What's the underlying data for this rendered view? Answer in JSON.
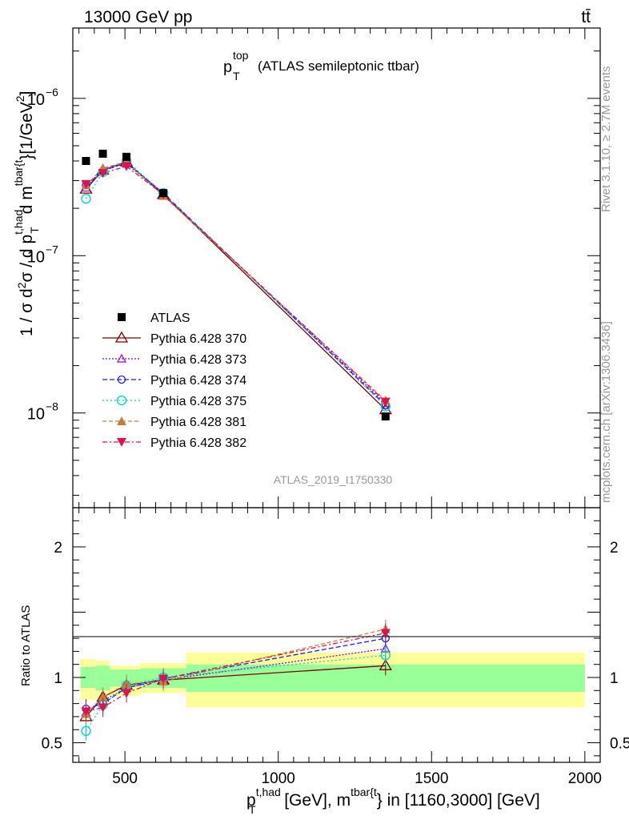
{
  "header": {
    "left": "13000 GeV pp",
    "right": "tt̄"
  },
  "title": {
    "main": "p",
    "sup": "top",
    "sub": "T",
    "rest": "(ATLAS semileptonic ttbar)"
  },
  "watermark": "ATLAS_2019_I1750330",
  "side_top": "Rivet 3.1.10, ≥ 2.7M events",
  "side_bottom": "mcplots.cern.ch [arXiv:1306.3436]",
  "ratio_ylabel": "Ratio to ATLAS",
  "ylabel_parts": {
    "a": "1 / σ d",
    "b": "2",
    "c": "σ / d p",
    "d": "t,had",
    "e": "T",
    "f": " d m",
    "g": "tbar{t",
    "h": "}[1/GeV",
    "i": "2",
    "j": "]"
  },
  "xlabel_parts": {
    "a": "p",
    "b": "t,had",
    "c": "T",
    "d": " [GeV], m",
    "e": "tbar{t",
    "f": "} in [1160,3000] [GeV]"
  },
  "colors": {
    "ATLAS": "#000000",
    "s370": "#800000",
    "s373": "#9400d3",
    "s374": "#1e1ee6",
    "s375": "#00d7c8",
    "s381": "#c08040",
    "s382": "#e0124d",
    "band_inner": "#99ff99",
    "band_outer": "#ffff99"
  },
  "chart_data": [
    {
      "type": "line",
      "panel": "main",
      "yscale": "log",
      "xlim": [
        330,
        2050
      ],
      "ylim": [
        2.5e-09,
        2.8e-06
      ],
      "yticks": [
        {
          "v": 1e-08,
          "label": "10",
          "exp": "−8"
        },
        {
          "v": 1e-07,
          "label": "10",
          "exp": "−7"
        },
        {
          "v": 1e-06,
          "label": "10",
          "exp": "−6"
        }
      ],
      "series": [
        {
          "name": "ATLAS",
          "marker": "square-filled",
          "x": [
            373,
            428,
            505,
            625,
            1350
          ],
          "y": [
            4e-07,
            4.45e-07,
            4.25e-07,
            2.5e-07,
            9.5e-09
          ]
        },
        {
          "name": "Pythia 6.428 370",
          "marker": "triangle-open",
          "dash": "",
          "x": [
            373,
            428,
            505,
            625,
            1350
          ],
          "y": [
            2.65e-07,
            3.5e-07,
            3.95e-07,
            2.45e-07,
            1.05e-08
          ]
        },
        {
          "name": "Pythia 6.428 373",
          "marker": "triangle-open-small",
          "dash": "2,2",
          "x": [
            373,
            428,
            505,
            625,
            1350
          ],
          "y": [
            2.7e-07,
            3.55e-07,
            3.85e-07,
            2.45e-07,
            1.15e-08
          ]
        },
        {
          "name": "Pythia 6.428 374",
          "marker": "circle-open",
          "dash": "6,3",
          "x": [
            373,
            428,
            505,
            625,
            1350
          ],
          "y": [
            2.8e-07,
            3.45e-07,
            3.9e-07,
            2.5e-07,
            1.12e-08
          ]
        },
        {
          "name": "Pythia 6.428 375",
          "marker": "circle-open-large",
          "dash": "2,3",
          "x": [
            373,
            428,
            505,
            625,
            1350
          ],
          "y": [
            2.3e-07,
            3.4e-07,
            4e-07,
            2.5e-07,
            1.1e-08
          ]
        },
        {
          "name": "Pythia 6.428 381",
          "marker": "triangle-filled",
          "dash": "5,3",
          "x": [
            373,
            428,
            505,
            625,
            1350
          ],
          "y": [
            2.8e-07,
            3.6e-07,
            3.95e-07,
            2.4e-07,
            1.2e-08
          ]
        },
        {
          "name": "Pythia 6.428 382",
          "marker": "triangle-down-filled",
          "dash": "6,3,2,3",
          "x": [
            373,
            428,
            505,
            625,
            1350
          ],
          "y": [
            2.85e-07,
            3.35e-07,
            3.7e-07,
            2.45e-07,
            1.18e-08
          ]
        }
      ]
    },
    {
      "type": "line",
      "panel": "ratio",
      "xlim": [
        330,
        2050
      ],
      "ylim": [
        0.35,
        2.3
      ],
      "yticks": [
        {
          "v": 0.5,
          "label": "0.5"
        },
        {
          "v": 1,
          "label": "1"
        },
        {
          "v": 2,
          "label": "2"
        }
      ],
      "xticks": [
        {
          "v": 500,
          "label": "500"
        },
        {
          "v": 1000,
          "label": "1000"
        },
        {
          "v": 1500,
          "label": "1500"
        },
        {
          "v": 2000,
          "label": "2000"
        }
      ],
      "bands": [
        {
          "x0": 355,
          "x1": 405,
          "inner": [
            0.92,
            1.08
          ],
          "outer": [
            0.83,
            1.14
          ]
        },
        {
          "x0": 405,
          "x1": 450,
          "inner": [
            0.9,
            1.09
          ],
          "outer": [
            0.84,
            1.13
          ]
        },
        {
          "x0": 450,
          "x1": 550,
          "inner": [
            0.93,
            1.06
          ],
          "outer": [
            0.86,
            1.09
          ]
        },
        {
          "x0": 550,
          "x1": 700,
          "inner": [
            0.92,
            1.07
          ],
          "outer": [
            0.88,
            1.11
          ]
        },
        {
          "x0": 700,
          "x1": 2000,
          "inner": [
            0.89,
            1.1
          ],
          "outer": [
            0.77,
            1.19
          ]
        }
      ],
      "series": [
        {
          "name": "Pythia 6.428 370",
          "x": [
            373,
            428,
            505,
            625,
            1350
          ],
          "y": [
            0.7,
            0.85,
            0.94,
            0.98,
            1.09
          ]
        },
        {
          "name": "Pythia 6.428 373",
          "x": [
            373,
            428,
            505,
            625,
            1350
          ],
          "y": [
            0.73,
            0.82,
            0.92,
            0.98,
            1.22
          ]
        },
        {
          "name": "Pythia 6.428 374",
          "x": [
            373,
            428,
            505,
            625,
            1350
          ],
          "y": [
            0.76,
            0.8,
            0.92,
            0.99,
            1.3
          ]
        },
        {
          "name": "Pythia 6.428 375",
          "x": [
            373,
            428,
            505,
            625,
            1350
          ],
          "y": [
            0.59,
            0.79,
            0.94,
            1.0,
            1.17
          ]
        },
        {
          "name": "Pythia 6.428 381",
          "x": [
            373,
            428,
            505,
            625,
            1350
          ],
          "y": [
            0.72,
            0.85,
            0.95,
            0.97,
            1.37
          ]
        },
        {
          "name": "Pythia 6.428 382",
          "x": [
            373,
            428,
            505,
            625,
            1350
          ],
          "y": [
            0.74,
            0.77,
            0.88,
            0.99,
            1.34
          ]
        }
      ]
    }
  ]
}
